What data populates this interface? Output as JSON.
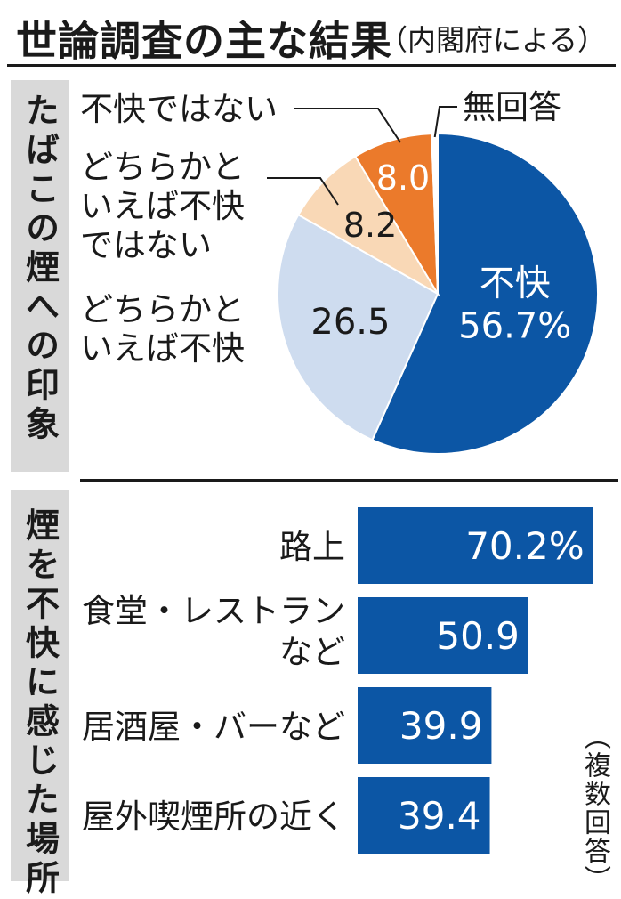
{
  "title": "世論調査の主な結果",
  "subtitle": "（内閣府による）",
  "section1_label": "たばこの煙への印象",
  "section2_label": "煙を不快に感じた場所",
  "multi_answer_note": "（複数回答）",
  "colors": {
    "dark_blue": "#0c56a5",
    "light_blue": "#cedcef",
    "peach": "#f9d8b6",
    "orange": "#eb7a2b",
    "text": "#1a1a1a",
    "side_bg": "#d9d9d9"
  },
  "chart_data": [
    {
      "type": "pie",
      "slices": [
        {
          "label": "不快",
          "value": 56.7,
          "value_text": "56.7%",
          "color": "#0c56a5"
        },
        {
          "label": "どちらかといえば不快",
          "label_lines": [
            "どちらかと",
            "いえば不快"
          ],
          "value": 26.5,
          "value_text": "26.5",
          "color": "#cedcef"
        },
        {
          "label": "どちらかといえば不快ではない",
          "label_lines": [
            "どちらかと",
            "いえば不快",
            "ではない"
          ],
          "value": 8.2,
          "value_text": "8.2",
          "color": "#f9d8b6"
        },
        {
          "label": "不快ではない",
          "label_lines": [
            "不快ではない"
          ],
          "value": 8.0,
          "value_text": "8.0",
          "color": "#eb7a2b"
        },
        {
          "label": "無回答",
          "label_lines": [
            "無回答"
          ],
          "value": 0.6,
          "value_text": "",
          "color": "#ffffff"
        }
      ]
    },
    {
      "type": "bar",
      "orientation": "horizontal",
      "categories": [
        [
          "路上"
        ],
        [
          "食堂・レストラン",
          "など"
        ],
        [
          "居酒屋・バーなど"
        ],
        [
          "屋外喫煙所の近く"
        ]
      ],
      "values": [
        70.2,
        50.9,
        39.9,
        39.4
      ],
      "value_labels": [
        "70.2%",
        "50.9",
        "39.9",
        "39.4"
      ],
      "color": "#0c56a5"
    }
  ]
}
